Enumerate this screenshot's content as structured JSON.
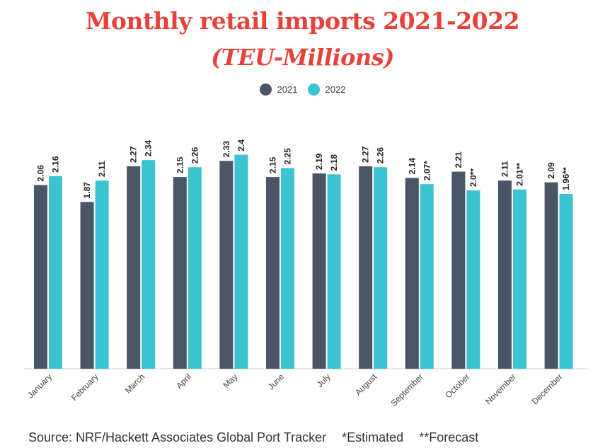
{
  "title_line1": "Monthly retail imports 2021-2022",
  "title_line2": "(TEU-Millions)",
  "colors": {
    "title": "#e8413a",
    "s2021": "#4a5565",
    "s2022": "#3cc3d0",
    "axis": "#cccccc"
  },
  "footer": {
    "source": "Source: NRF/Hackett Associates Global Port Tracker",
    "estimated": "*Estimated",
    "forecast": "**Forecast"
  },
  "chart_data": {
    "type": "bar",
    "title": "Monthly retail imports 2021-2022 (TEU-Millions)",
    "xlabel": "",
    "ylabel": "TEU-Millions",
    "ylim": [
      0,
      2.5
    ],
    "categories": [
      "January",
      "February",
      "March",
      "April",
      "May",
      "June",
      "July",
      "August",
      "September",
      "October",
      "November",
      "December"
    ],
    "series": [
      {
        "name": "2021",
        "values": [
          2.06,
          1.87,
          2.27,
          2.15,
          2.33,
          2.15,
          2.19,
          2.27,
          2.14,
          2.21,
          2.11,
          2.09
        ],
        "labels": [
          "2.06",
          "1.87",
          "2.27",
          "2.15",
          "2.33",
          "2.15",
          "2.19",
          "2.27",
          "2.14",
          "2.21",
          "2.11",
          "2.09"
        ]
      },
      {
        "name": "2022",
        "values": [
          2.16,
          2.11,
          2.34,
          2.26,
          2.4,
          2.25,
          2.18,
          2.26,
          2.07,
          2.0,
          2.01,
          1.96
        ],
        "labels": [
          "2.16",
          "2.11",
          "2.34",
          "2.26",
          "2.4",
          "2.25",
          "2.18",
          "2.26",
          "2.07*",
          "2.0**",
          "2.01**",
          "1.96**"
        ]
      }
    ],
    "legend_position": "top-center"
  }
}
